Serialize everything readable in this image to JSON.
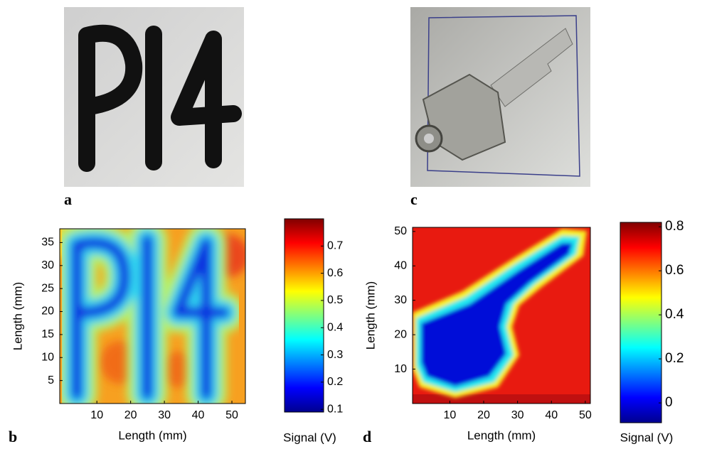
{
  "panel_labels": [
    "a",
    "b",
    "c",
    "d"
  ],
  "chart_data": [
    {
      "type": "heatmap",
      "colormap": "jet",
      "xlabel": "Length (mm)",
      "ylabel": "Length (mm)",
      "xlim": [
        -1,
        54
      ],
      "xticks": [
        10,
        20,
        30,
        40,
        50
      ],
      "ylim": [
        0,
        38
      ],
      "yticks": [
        5,
        10,
        15,
        20,
        25,
        30,
        35
      ],
      "colorbar_label": "Signal (V)",
      "clim": [
        0.09,
        0.8
      ],
      "cticks": [
        0.1,
        0.2,
        0.3,
        0.4,
        0.5,
        0.6,
        0.7
      ]
    },
    {
      "type": "heatmap",
      "colormap": "jet",
      "xlabel": "Length (mm)",
      "ylabel": "Length (mm)",
      "xlim": [
        -1,
        51.5
      ],
      "xticks": [
        10,
        20,
        30,
        40,
        50
      ],
      "ylim": [
        0,
        51.2
      ],
      "yticks": [
        10,
        20,
        30,
        40,
        50
      ],
      "colorbar_label": "Signal (V)",
      "clim": [
        -0.09,
        0.82
      ],
      "cticks": [
        0,
        0.2,
        0.4,
        0.6,
        0.8
      ]
    }
  ]
}
